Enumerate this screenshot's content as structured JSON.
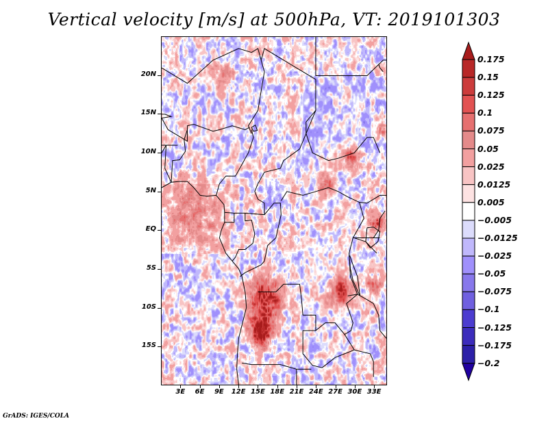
{
  "title": "Vertical velocity [m/s] at 500hPa, VT: 2019101303",
  "variable": "Vertical velocity",
  "units": "m/s",
  "level": "500hPa",
  "valid_time": "2019101303",
  "credit": "GrADS: IGES/COLA",
  "map": {
    "lon_range": [
      0,
      35
    ],
    "lat_range": [
      -20,
      25
    ],
    "y_axis": {
      "ticks": [
        {
          "label": "20N",
          "lat": 20
        },
        {
          "label": "15N",
          "lat": 15
        },
        {
          "label": "10N",
          "lat": 10
        },
        {
          "label": "5N",
          "lat": 5
        },
        {
          "label": "EQ",
          "lat": 0
        },
        {
          "label": "5S",
          "lat": -5
        },
        {
          "label": "10S",
          "lat": -10
        },
        {
          "label": "15S",
          "lat": -15
        }
      ]
    },
    "x_axis": {
      "ticks": [
        {
          "label": "3E",
          "lon": 3
        },
        {
          "label": "6E",
          "lon": 6
        },
        {
          "label": "9E",
          "lon": 9
        },
        {
          "label": "12E",
          "lon": 12
        },
        {
          "label": "15E",
          "lon": 15
        },
        {
          "label": "18E",
          "lon": 18
        },
        {
          "label": "21E",
          "lon": 21
        },
        {
          "label": "24E",
          "lon": 24
        },
        {
          "label": "27E",
          "lon": 27
        },
        {
          "label": "30E",
          "lon": 30
        },
        {
          "label": "33E",
          "lon": 33
        }
      ]
    }
  },
  "colorbar": {
    "levels": [
      {
        "label": "0.175",
        "value": 0.175
      },
      {
        "label": "0.15",
        "value": 0.15
      },
      {
        "label": "0.125",
        "value": 0.125
      },
      {
        "label": "0.1",
        "value": 0.1
      },
      {
        "label": "0.075",
        "value": 0.075
      },
      {
        "label": "0.05",
        "value": 0.05
      },
      {
        "label": "0.025",
        "value": 0.025
      },
      {
        "label": "0.0125",
        "value": 0.0125
      },
      {
        "label": "0.005",
        "value": 0.005
      },
      {
        "label": "−0.005",
        "value": -0.005
      },
      {
        "label": "−0.0125",
        "value": -0.0125
      },
      {
        "label": "−0.025",
        "value": -0.025
      },
      {
        "label": "−0.05",
        "value": -0.05
      },
      {
        "label": "−0.075",
        "value": -0.075
      },
      {
        "label": "−0.1",
        "value": -0.1
      },
      {
        "label": "−0.125",
        "value": -0.125
      },
      {
        "label": "−0.175",
        "value": -0.175
      },
      {
        "label": "−0.2",
        "value": -0.2
      }
    ],
    "colors_top_to_bottom": [
      "#a81c1c",
      "#b82828",
      "#cc3c3c",
      "#e25252",
      "#e67070",
      "#e48a8a",
      "#f2a0a0",
      "#f8c4c4",
      "#fde2e2",
      "#ffffff",
      "#dcdcfc",
      "#c0b8fc",
      "#a090fc",
      "#8878ec",
      "#7060e0",
      "#4c3cd0",
      "#3c2cbc",
      "#2c20a8",
      "#2000a0"
    ]
  }
}
